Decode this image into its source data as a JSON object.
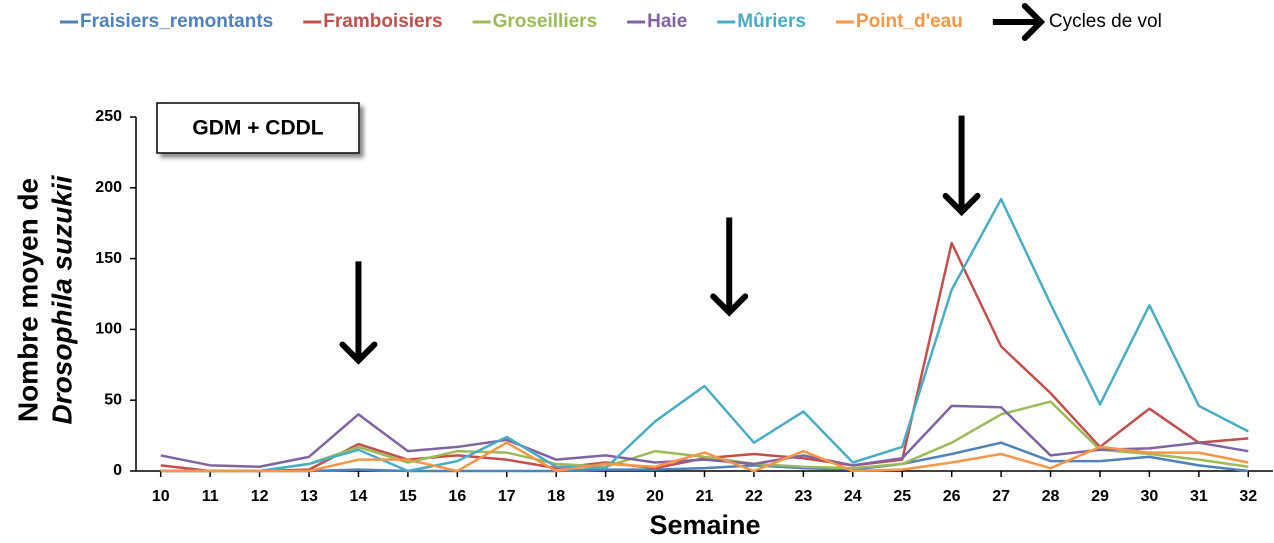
{
  "chart_data": {
    "type": "line",
    "annotation": "GDM + CDDL",
    "ylabel": [
      "Nombre moyen de",
      "Drosophila suzukii"
    ],
    "xlabel": "Semaine",
    "x": [
      10,
      11,
      12,
      13,
      14,
      15,
      16,
      17,
      18,
      19,
      20,
      21,
      22,
      23,
      24,
      25,
      26,
      27,
      28,
      29,
      30,
      31,
      32
    ],
    "xlim": [
      9.5,
      32.5
    ],
    "xticks": [
      10,
      11,
      12,
      13,
      14,
      15,
      16,
      17,
      18,
      19,
      20,
      21,
      22,
      23,
      24,
      25,
      26,
      27,
      28,
      29,
      30,
      31,
      32
    ],
    "ylim": [
      0,
      250
    ],
    "yticks": [
      0,
      50,
      100,
      150,
      200,
      250
    ],
    "grid": false,
    "legend": "top",
    "series": [
      {
        "name": "Fraisiers_remontants",
        "color": "#4f81bd",
        "values": [
          0,
          0,
          0,
          0,
          1,
          0,
          0,
          0,
          0,
          1,
          1,
          2,
          4,
          2,
          1,
          5,
          12,
          20,
          7,
          7,
          10,
          4,
          0
        ]
      },
      {
        "name": "Framboisiers",
        "color": "#c0504d",
        "values": [
          4,
          0,
          0,
          1,
          19,
          8,
          11,
          8,
          2,
          6,
          2,
          9,
          12,
          9,
          4,
          8,
          161,
          88,
          55,
          17,
          44,
          20,
          23
        ]
      },
      {
        "name": "Groseilliers",
        "color": "#9bbb59",
        "values": [
          0,
          0,
          0,
          5,
          17,
          6,
          14,
          13,
          5,
          3,
          14,
          10,
          5,
          3,
          2,
          5,
          20,
          40,
          49,
          15,
          12,
          8,
          3
        ]
      },
      {
        "name": "Haie",
        "color": "#8064a2",
        "values": [
          11,
          4,
          3,
          10,
          40,
          14,
          17,
          22,
          8,
          11,
          6,
          8,
          5,
          11,
          4,
          9,
          46,
          45,
          11,
          15,
          16,
          20,
          14
        ]
      },
      {
        "name": "Mûriers",
        "color": "#4bacc6",
        "values": [
          0,
          0,
          0,
          5,
          15,
          0,
          7,
          24,
          3,
          2,
          35,
          60,
          20,
          42,
          6,
          17,
          128,
          192,
          118,
          47,
          117,
          46,
          28
        ]
      },
      {
        "name": "Point_d'eau",
        "color": "#f79646",
        "values": [
          0,
          0,
          0,
          0,
          8,
          8,
          0,
          20,
          0,
          5,
          3,
          13,
          0,
          14,
          0,
          1,
          6,
          12,
          2,
          17,
          13,
          13,
          6
        ]
      }
    ],
    "arrow_legend": "Cycles de vol",
    "arrows": [
      {
        "x": 14,
        "from": 148,
        "to": 78
      },
      {
        "x": 21.5,
        "from": 179,
        "to": 112
      },
      {
        "x": 26.2,
        "from": 251,
        "to": 183
      }
    ]
  }
}
